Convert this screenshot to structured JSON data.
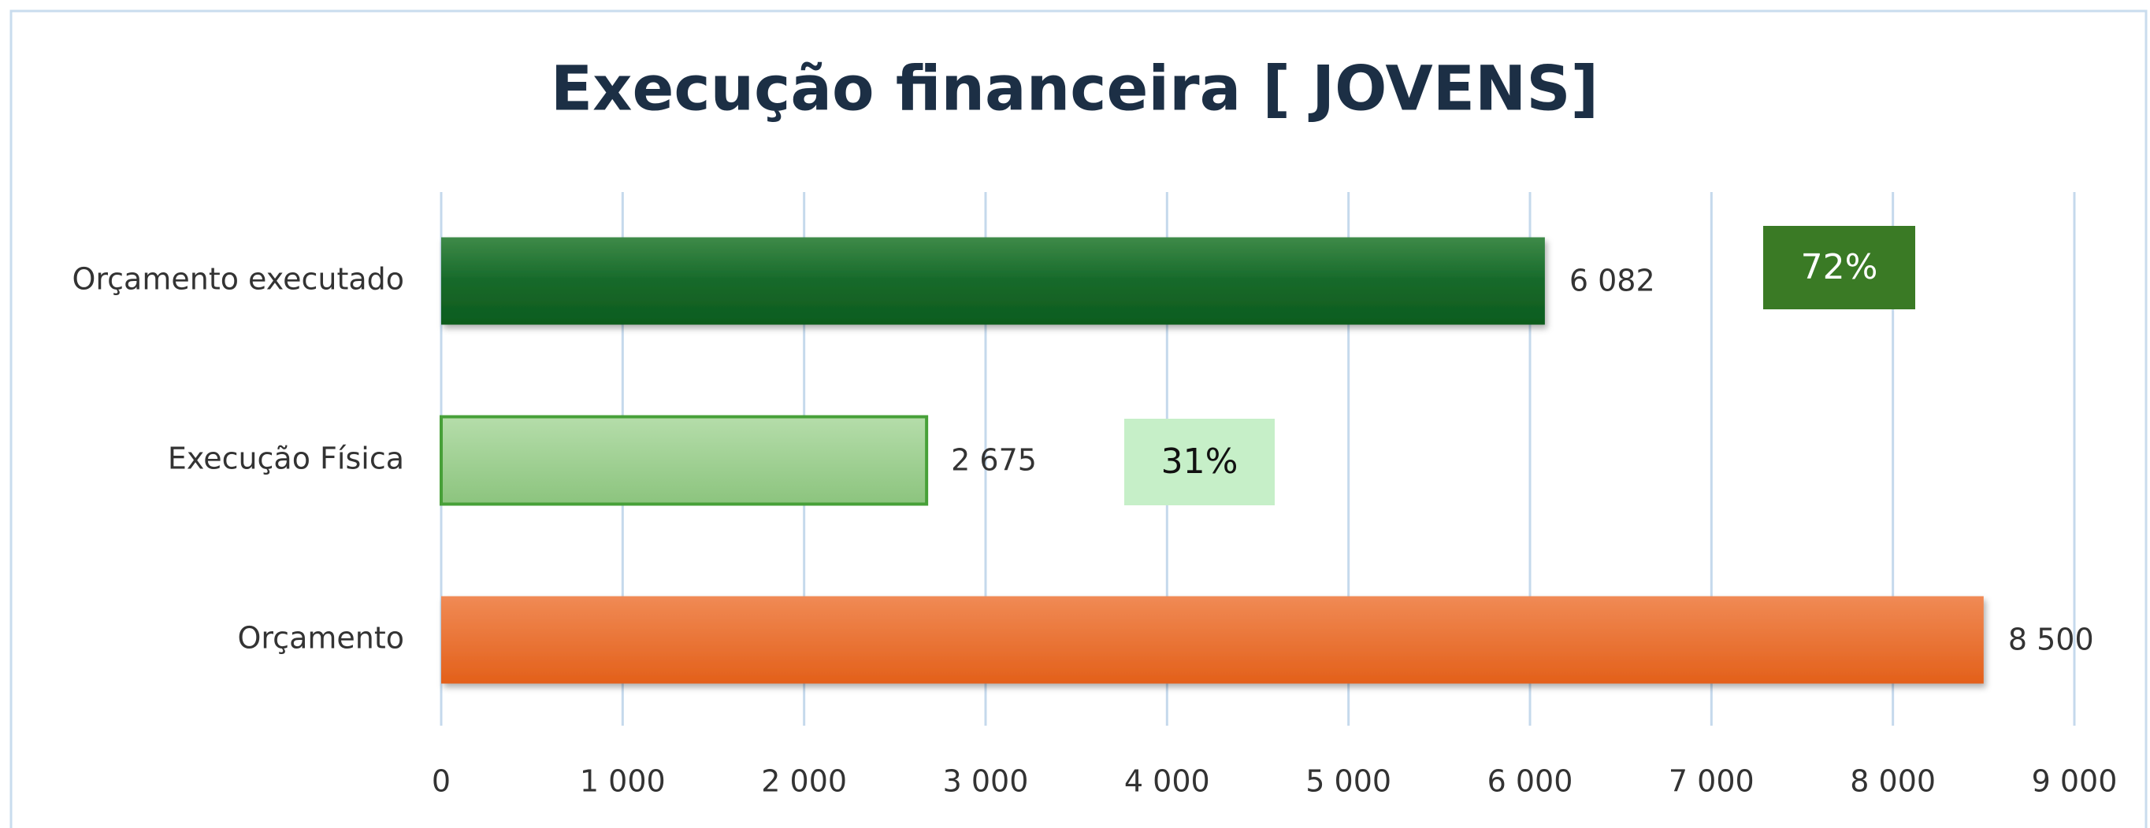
{
  "chart_data": {
    "type": "hbar",
    "title": "Execução financeira [ JOVENS]",
    "categories": [
      "Orçamento executado",
      "Execução Física",
      "Orçamento"
    ],
    "values": [
      6082,
      2675,
      8500
    ],
    "value_labels": [
      "6 082",
      "2 675",
      "8 500"
    ],
    "colors": [
      "#16692a",
      "#9fd092",
      "#ea6a25"
    ],
    "annotations": [
      "72%",
      "31%"
    ],
    "xlim": [
      0,
      9000
    ],
    "xticks": [
      0,
      {
        "value": 1000,
        "label": "1 000"
      },
      {
        "value": 2000,
        "label": "2 000"
      },
      {
        "value": 3000,
        "label": "3 000"
      },
      {
        "value": 4000,
        "label": "4 000"
      },
      {
        "value": 5000,
        "label": "5 000"
      },
      {
        "value": 6000,
        "label": "6 000"
      },
      {
        "value": 7000,
        "label": "7 000"
      },
      {
        "value": 8000,
        "label": "8 000"
      },
      {
        "value": 9000,
        "label": "9 000"
      }
    ],
    "grid": true
  }
}
